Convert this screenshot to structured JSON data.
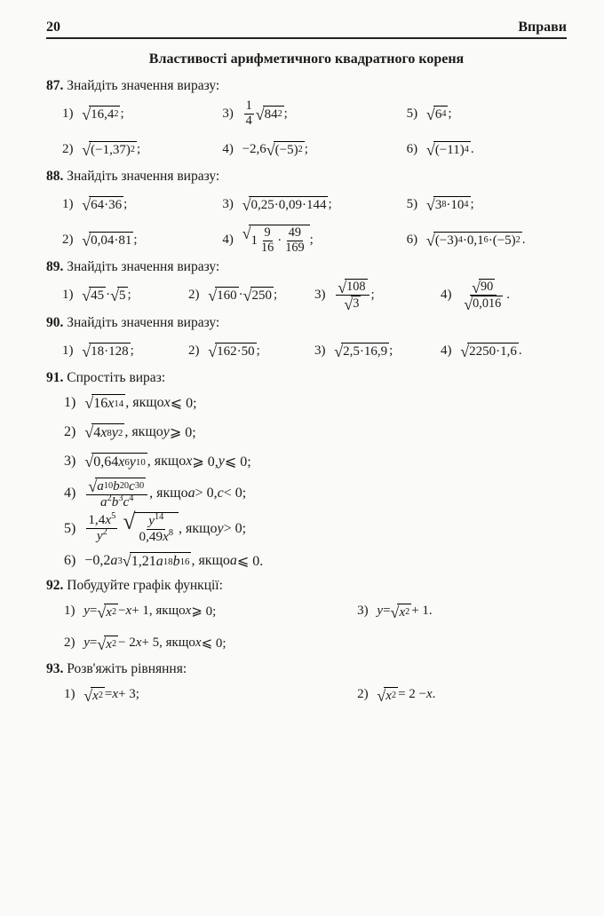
{
  "pageNumber": "20",
  "runningHead": "Вправи",
  "sectionTitle": "Властивості арифметичного квадратного кореня",
  "problems": {
    "p87": {
      "num": "87.",
      "text": "Знайдіть значення виразу:",
      "items": [
        {
          "label": "1)",
          "radicand": "16,4<sup>2</sup>"
        },
        {
          "label": "3)",
          "prefixFrac": {
            "n": "1",
            "d": "4"
          },
          "radicand": "84<sup>2</sup>"
        },
        {
          "label": "5)",
          "radicand": "6<sup>4</sup>"
        },
        {
          "label": "2)",
          "radicand": "(−1,37)<sup>2</sup>"
        },
        {
          "label": "4)",
          "prefix": "−2,6",
          "radicand": "(−5)<sup>2</sup>"
        },
        {
          "label": "6)",
          "radicand": "(−11)<sup>4</sup>",
          "suffix": "."
        }
      ]
    },
    "p88": {
      "num": "88.",
      "text": "Знайдіть значення виразу:",
      "items": [
        {
          "label": "1)",
          "radicand": "64·36"
        },
        {
          "label": "3)",
          "radicand": "0,25·0,09·144"
        },
        {
          "label": "5)",
          "radicand": "3<sup>8</sup>·10<sup>4</sup>"
        },
        {
          "label": "2)",
          "radicand": "0,04·81"
        },
        {
          "label": "4)",
          "radicandFrac": "1<span class='fr'><span class='n'>9</span><span class='d'>16</span></span>·<span class='fr'><span class='n'>49</span><span class='d'>169</span></span>"
        },
        {
          "label": "6)",
          "radicand": "(−3)<sup>4</sup>·0,1<sup>6</sup>·(−5)<sup>2</sup>",
          "suffix": "."
        }
      ]
    },
    "p89": {
      "num": "89.",
      "text": "Знайдіть значення виразу:",
      "items": [
        {
          "label": "1)",
          "html": "<span class='rad'><span class='rad-sign'>√</span><span class='rad-body'>45</span></span>·<span class='rad'><span class='rad-sign'>√</span><span class='rad-body'>5</span></span>;"
        },
        {
          "label": "2)",
          "html": "<span class='rad'><span class='rad-sign'>√</span><span class='rad-body'>160</span></span>·<span class='rad'><span class='rad-sign'>√</span><span class='rad-body'>250</span></span>;"
        },
        {
          "label": "3)",
          "html": "<span class='fr'><span class='n'><span class='rad'><span class='rad-sign'>√</span><span class='rad-body'>108</span></span></span><span class='d'><span class='rad'><span class='rad-sign'>√</span><span class='rad-body'>3</span></span></span></span>;"
        },
        {
          "label": "4)",
          "html": "<span class='fr'><span class='n'><span class='rad'><span class='rad-sign'>√</span><span class='rad-body'>90</span></span></span><span class='d'><span class='rad'><span class='rad-sign'>√</span><span class='rad-body'>0,016</span></span></span></span>."
        }
      ]
    },
    "p90": {
      "num": "90.",
      "text": "Знайдіть значення виразу:",
      "items": [
        {
          "label": "1)",
          "radicand": "18·128"
        },
        {
          "label": "2)",
          "radicand": "162·50"
        },
        {
          "label": "3)",
          "radicand": "2,5·16,9"
        },
        {
          "label": "4)",
          "radicand": "2250·1,6",
          "suffix": "."
        }
      ]
    },
    "p91": {
      "num": "91.",
      "text": "Спростіть вираз:",
      "items": [
        {
          "label": "1)",
          "html": "<span class='rad'><span class='rad-sign'>√</span><span class='rad-body'>16<i>x</i><sup>14</sup></span></span>, якщо <i>x</i> ⩽ 0;"
        },
        {
          "label": "2)",
          "html": "<span class='rad'><span class='rad-sign'>√</span><span class='rad-body'>4<i>x</i><sup>8</sup><i>y</i><sup>2</sup></span></span>, якщо <i>y</i> ⩾ 0;"
        },
        {
          "label": "3)",
          "html": "<span class='rad'><span class='rad-sign'>√</span><span class='rad-body'>0,64<i>x</i><sup>6</sup><i>y</i><sup>10</sup></span></span>, якщо <i>x</i> ⩾ 0, <i>y</i> ⩽ 0;"
        },
        {
          "label": "4)",
          "html": "<span class='fr'><span class='n'><span class='rad'><span class='rad-sign'>√</span><span class='rad-body'><i>a</i><sup>10</sup><i>b</i><sup>20</sup><i>c</i><sup>30</sup></span></span></span><span class='d'><i>a</i><sup>2</sup><i>b</i><sup>3</sup><i>c</i><sup>4</sup></span></span>, якщо <i>a</i> &gt; 0, <i>c</i> &lt; 0;"
        },
        {
          "label": "5)",
          "html": "<span class='fr'><span class='n'>1,4<i>x</i><sup>5</sup></span><span class='d'><i>y</i><sup>2</sup></span></span>&nbsp;<span class='rad'><span class='rad-sign' style='font-size:26px;top:-2px'>√</span><span class='rad-body'><span class='fr'><span class='n'><i>y</i><sup>14</sup></span><span class='d'>0,49<i>x</i><sup>8</sup></span></span></span></span>, якщо <i>y</i> &gt; 0;"
        },
        {
          "label": "6)",
          "html": "−0,2<i>a</i><sup>3</sup><span class='rad'><span class='rad-sign'>√</span><span class='rad-body'>1,21<i>a</i><sup>18</sup><i>b</i><sup>16</sup></span></span>, якщо <i>a</i> ⩽ 0."
        }
      ]
    },
    "p92": {
      "num": "92.",
      "text": "Побудуйте графік функції:",
      "items": [
        {
          "label": "1)",
          "html": "<i>y</i> = <span class='rad'><span class='rad-sign'>√</span><span class='rad-body'><i>x</i><sup>2</sup></span></span> − <i>x</i> + 1, якщо <i>x</i> ⩾ 0;"
        },
        {
          "label": "3)",
          "html": "<i>y</i> = <span class='rad'><span class='rad-sign'>√</span><span class='rad-body'><i>x</i><sup>2</sup></span></span> + 1."
        },
        {
          "label": "2)",
          "html": "<i>y</i> = <span class='rad'><span class='rad-sign'>√</span><span class='rad-body'><i>x</i><sup>2</sup></span></span> − 2<i>x</i> + 5, якщо <i>x</i> ⩽ 0;"
        },
        {
          "labelEmpty": true
        }
      ]
    },
    "p93": {
      "num": "93.",
      "text": "Розв'яжіть рівняння:",
      "items": [
        {
          "label": "1)",
          "html": "<span class='rad'><span class='rad-sign'>√</span><span class='rad-body'><i>x</i><sup>2</sup></span></span> = <i>x</i> + 3;"
        },
        {
          "label": "2)",
          "html": "<span class='rad'><span class='rad-sign'>√</span><span class='rad-body'><i>x</i><sup>2</sup></span></span> = 2 − <i>x</i>."
        }
      ]
    }
  }
}
